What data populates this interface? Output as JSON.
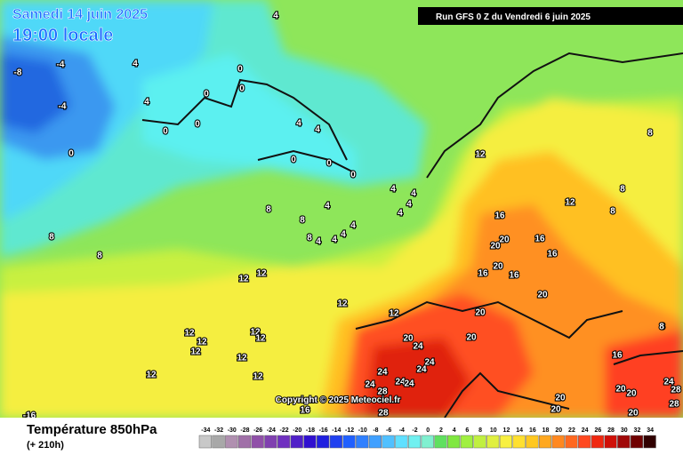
{
  "header": {
    "date": "Samedi 14 juin 2025",
    "time": "19:00 locale",
    "run": "Run GFS 0 Z du Vendredi 6 juin 2025"
  },
  "copyright": "Copyright © 2025 Meteociel.fr",
  "legend": {
    "title": "Température 850hPa",
    "subtitle": "(+ 210h)",
    "values": [
      -34,
      -32,
      -30,
      -28,
      -26,
      -24,
      -22,
      -20,
      -18,
      -16,
      -14,
      -12,
      -10,
      -8,
      -6,
      -4,
      -2,
      0,
      2,
      4,
      6,
      8,
      10,
      12,
      14,
      16,
      18,
      20,
      22,
      24,
      26,
      28,
      30,
      32,
      34
    ],
    "colors": [
      "#c8c8c8",
      "#a8a8a8",
      "#b090b0",
      "#a070a8",
      "#9050a8",
      "#8040b0",
      "#7030c0",
      "#5020c8",
      "#3010d0",
      "#2020e0",
      "#2040f0",
      "#2060ff",
      "#3080ff",
      "#40a0ff",
      "#50c0ff",
      "#60e0ff",
      "#70f0f0",
      "#80f0d0",
      "#60e060",
      "#80e840",
      "#a0f040",
      "#c0f040",
      "#e0f040",
      "#f8f040",
      "#ffe030",
      "#ffc820",
      "#ffa820",
      "#ff8820",
      "#ff6820",
      "#ff4820",
      "#f02810",
      "#d01008",
      "#a00808",
      "#700000",
      "#300000"
    ]
  },
  "map": {
    "contour_labels": [
      -8,
      -4,
      -4,
      4,
      4,
      4,
      4,
      0,
      0,
      0,
      4,
      0,
      0,
      4,
      4,
      0,
      0,
      0,
      0,
      4,
      4,
      4,
      4,
      4,
      8,
      8,
      4,
      4,
      8,
      8,
      8,
      8,
      12,
      12,
      12,
      12,
      12,
      12,
      12,
      12,
      12,
      12,
      12,
      12,
      12,
      12,
      8,
      8,
      8,
      16,
      20,
      16,
      20,
      16,
      20,
      16,
      16,
      20,
      20,
      20,
      24,
      20,
      24,
      24,
      24,
      24,
      24,
      24,
      28,
      20,
      20,
      20,
      16,
      20,
      20,
      24,
      28,
      28,
      8,
      16,
      28,
      -16
    ]
  }
}
